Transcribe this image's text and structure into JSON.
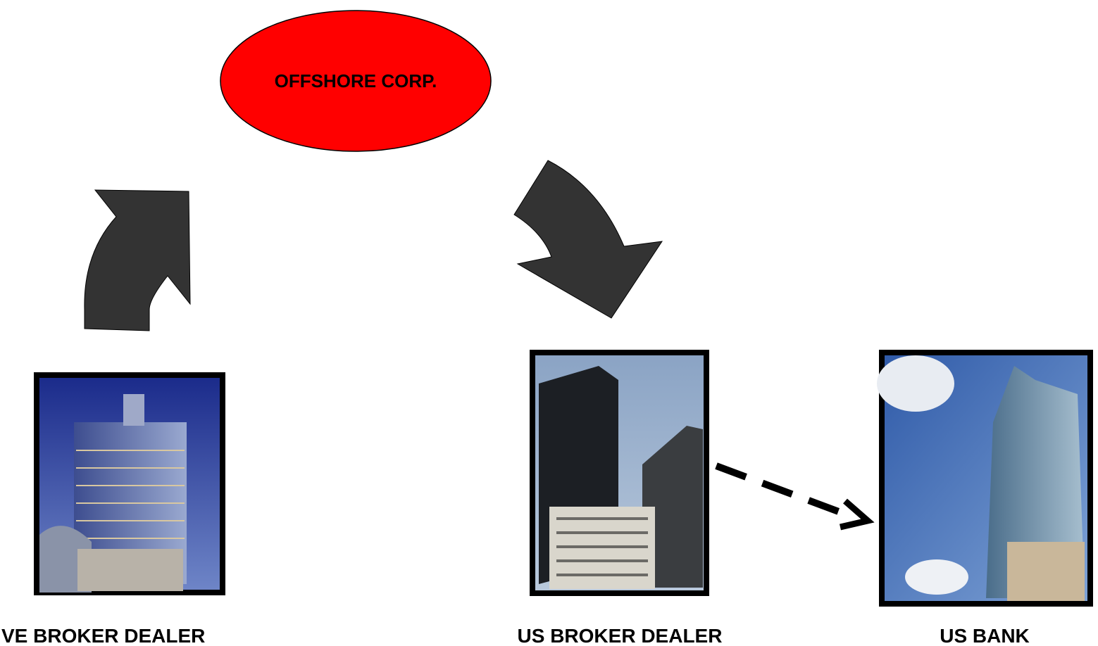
{
  "nodes": [
    {
      "label": "OFFSHORE CORP."
    },
    {
      "label": "VE BROKER DEALER"
    },
    {
      "label": "US BROKER DEALER"
    },
    {
      "label": "US BANK"
    }
  ]
}
